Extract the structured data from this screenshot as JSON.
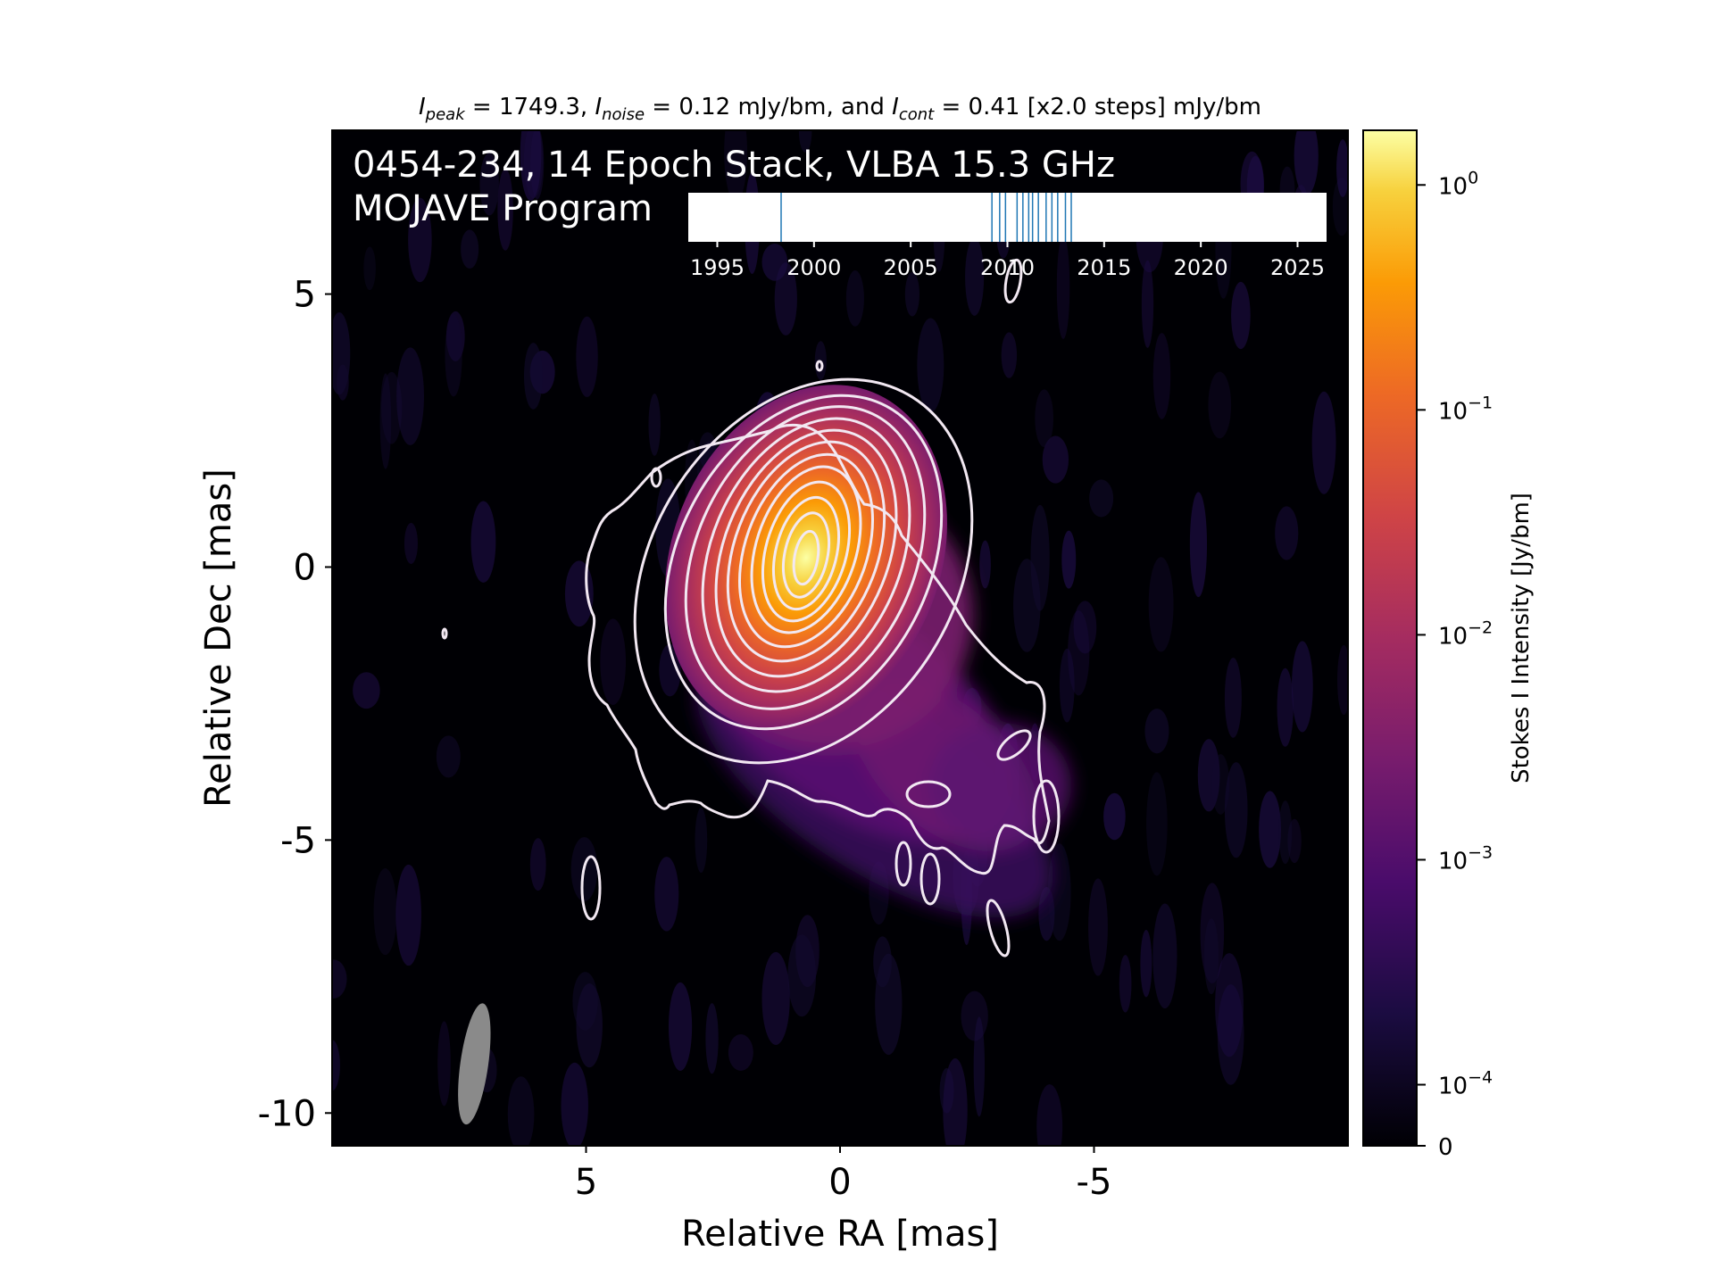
{
  "header": {
    "peak_label": "I",
    "peak_sub": "peak",
    "peak_value": " = 1749.3, ",
    "noise_label": "I",
    "noise_sub": "noise",
    "noise_value": " = 0.12 mJy/bm, and ",
    "cont_label": "I",
    "cont_sub": "cont",
    "cont_value": " = 0.41 [x2.0 steps] mJy/bm"
  },
  "chart_data": {
    "type": "heatmap",
    "subtitle_line1": "0454-234, 14 Epoch Stack, VLBA 15.3 GHz",
    "subtitle_line2": "MOJAVE Program",
    "xlabel": "Relative RA [mas]",
    "ylabel": "Relative Dec [mas]",
    "x_inverted": true,
    "xlim": [
      10,
      -10
    ],
    "ylim": [
      -10.6,
      8
    ],
    "x_ticks": [
      5,
      0,
      -5
    ],
    "x_tick_labels": [
      "5",
      "0",
      "-5"
    ],
    "y_ticks": [
      5,
      0,
      -5,
      -10
    ],
    "y_tick_labels": [
      "5",
      "0",
      "-5",
      "-10"
    ],
    "image": {
      "peak_position": [
        0,
        0
      ],
      "peak_intensity_jy_per_beam": 1.7493,
      "noise_mjy_per_beam": 0.12,
      "lowest_contour_mjy_per_beam": 0.41,
      "contour_step_factor": 2.0,
      "contour_count": 13,
      "jet_position_angle_deg": 210,
      "colormap": "inferno",
      "colormap_scale": "log"
    },
    "beam": {
      "center": [
        7.2,
        -9.1
      ],
      "major_mas": 1.4,
      "minor_mas": 0.5,
      "color": "#8a8a8a"
    },
    "colorbar": {
      "label": "Stokes I Intensity [Jy/bm]",
      "scale": "log",
      "tick_labels": [
        {
          "base": "10",
          "exp": "0",
          "value": 1
        },
        {
          "base": "10",
          "exp": "−1",
          "value": 0.1
        },
        {
          "base": "10",
          "exp": "−2",
          "value": 0.01
        },
        {
          "base": "10",
          "exp": "−3",
          "value": 0.001
        },
        {
          "base": "10",
          "exp": "−4",
          "value": 0.0001
        },
        {
          "base": "",
          "exp": "",
          "value": 0,
          "text": "0"
        }
      ]
    },
    "timeline": {
      "xlim": [
        1993.5,
        2026.5
      ],
      "tick_values": [
        1995,
        2000,
        2005,
        2010,
        2015,
        2020,
        2025
      ],
      "tick_labels": [
        "1995",
        "2000",
        "2005",
        "2010",
        "2015",
        "2020",
        "2025"
      ],
      "epochs": [
        1998.3,
        2009.2,
        2009.6,
        2009.9,
        2010.5,
        2010.8,
        2011.1,
        2011.3,
        2011.6,
        2012.0,
        2012.3,
        2012.6,
        2013.0,
        2013.3
      ],
      "epoch_color": "#1f77b4"
    }
  },
  "colors": {
    "background": "#000004",
    "contour": "#f2e8f2",
    "text": "#000000",
    "overlay_text": "#ffffff"
  }
}
